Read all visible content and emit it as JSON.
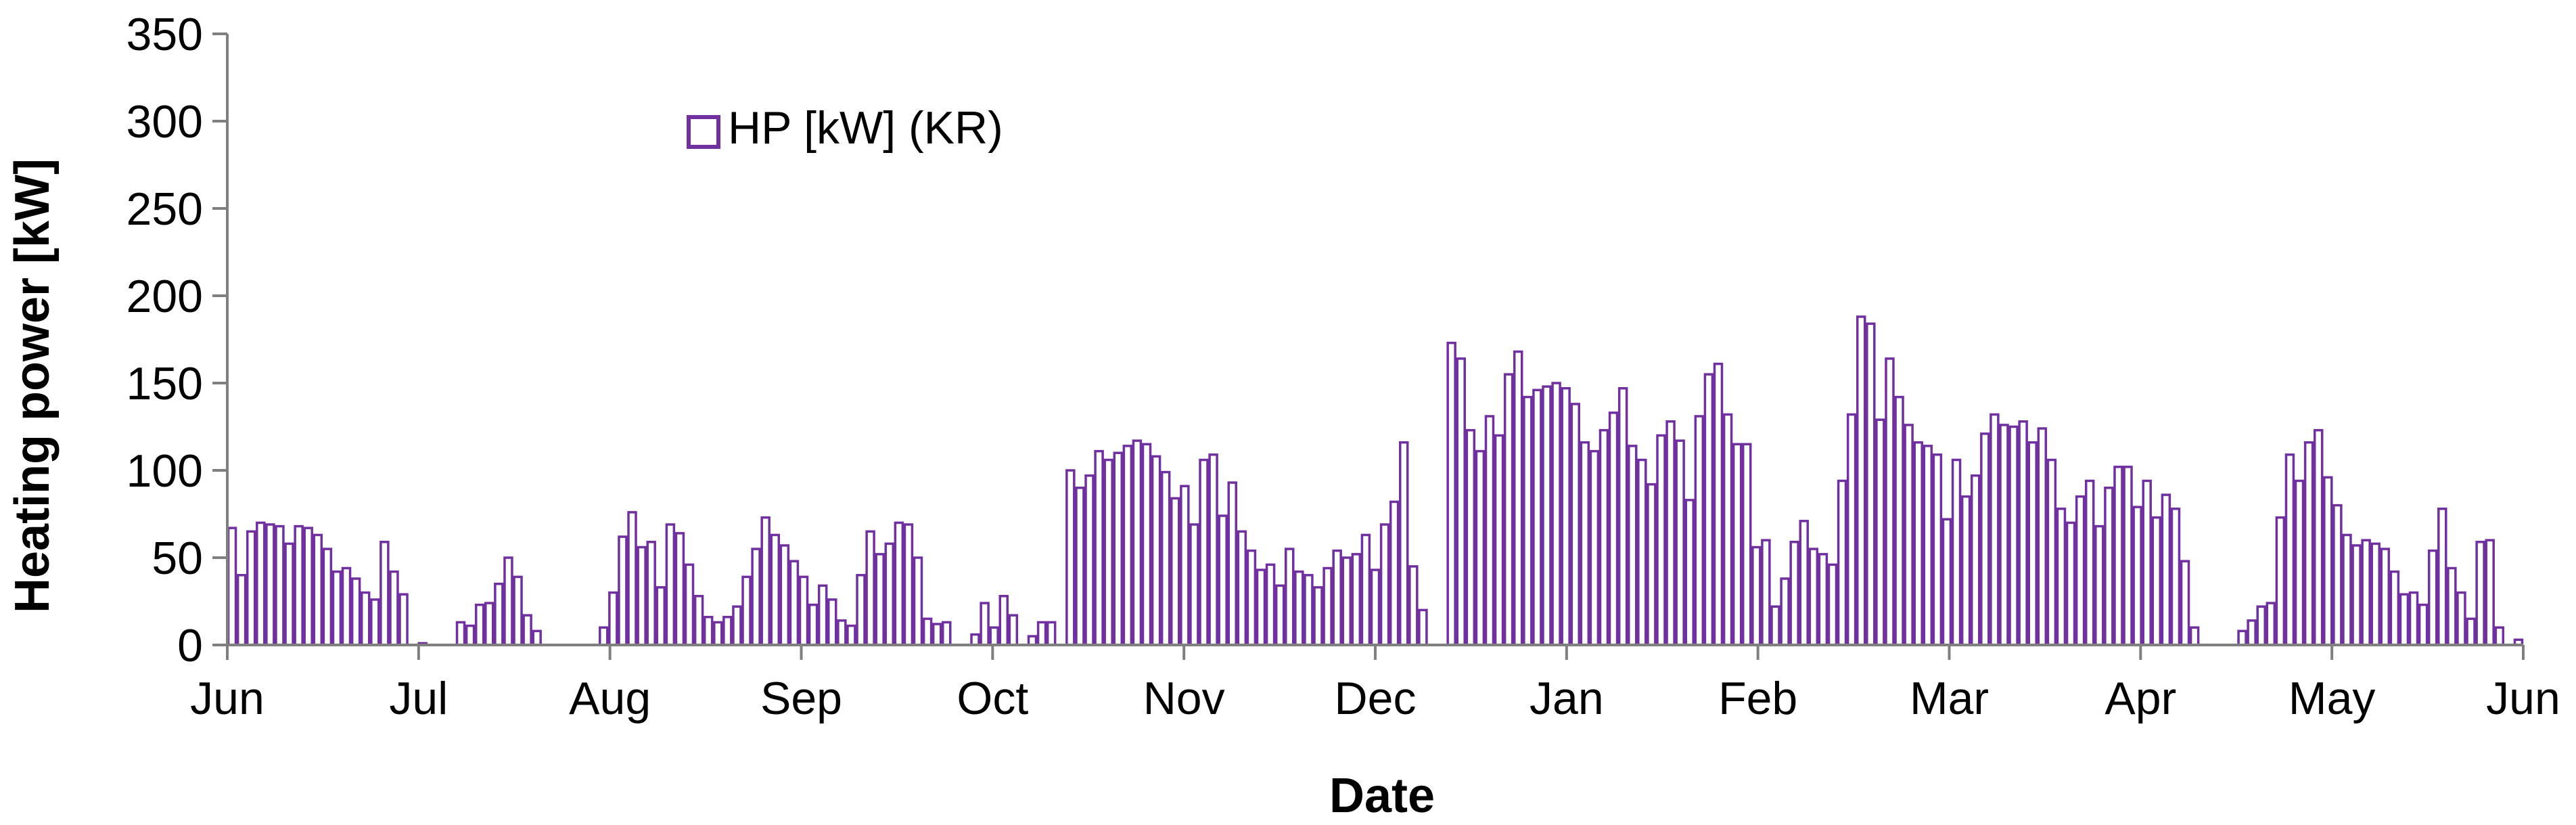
{
  "chart_data": {
    "type": "bar",
    "title": "",
    "xlabel": "Date",
    "ylabel": "Heating power [kW]",
    "ylim": [
      0,
      350
    ],
    "yticks": [
      0,
      50,
      100,
      150,
      200,
      250,
      300,
      350
    ],
    "x_tick_labels": [
      "Jun",
      "Jul",
      "Aug",
      "Sep",
      "Oct",
      "Nov",
      "Dec",
      "Jan",
      "Feb",
      "Mar",
      "Apr",
      "May",
      "Jun"
    ],
    "grid": false,
    "legend_position": "top-left",
    "series": [
      {
        "name": "HP [kW] (KR)",
        "color": "#7030A0",
        "fill": "#ffffff",
        "x_start": "Jun 1",
        "x_step": "2 days",
        "values": [
          67,
          40,
          65,
          70,
          69,
          68,
          58,
          68,
          67,
          63,
          55,
          42,
          44,
          38,
          30,
          26,
          59,
          42,
          29,
          0,
          1,
          0,
          0,
          0,
          13,
          11,
          23,
          24,
          35,
          50,
          39,
          17,
          8,
          0,
          0,
          0,
          0,
          0,
          0,
          10,
          30,
          62,
          76,
          56,
          59,
          33,
          69,
          64,
          46,
          28,
          16,
          13,
          16,
          22,
          39,
          55,
          73,
          63,
          57,
          48,
          39,
          23,
          34,
          26,
          14,
          11,
          40,
          65,
          52,
          58,
          70,
          69,
          50,
          15,
          12,
          13,
          0,
          0,
          6,
          24,
          10,
          28,
          17,
          0,
          5,
          13,
          13,
          0,
          100,
          90,
          97,
          111,
          106,
          110,
          114,
          117,
          115,
          108,
          99,
          84,
          91,
          69,
          106,
          109,
          74,
          93,
          65,
          54,
          43,
          46,
          34,
          55,
          42,
          40,
          33,
          44,
          54,
          50,
          52,
          63,
          43,
          69,
          82,
          116,
          45,
          20,
          0,
          0,
          173,
          164,
          123,
          111,
          131,
          120,
          155,
          168,
          142,
          146,
          148,
          150,
          147,
          138,
          116,
          111,
          123,
          133,
          147,
          114,
          106,
          92,
          120,
          128,
          117,
          83,
          131,
          155,
          161,
          132,
          115,
          115,
          56,
          60,
          22,
          38,
          59,
          71,
          55,
          52,
          46,
          94,
          132,
          188,
          184,
          129,
          164,
          142,
          126,
          116,
          114,
          109,
          72,
          106,
          85,
          97,
          121,
          132,
          126,
          125,
          128,
          116,
          124,
          106,
          78,
          70,
          85,
          94,
          68,
          90,
          102,
          102,
          79,
          94,
          73,
          86,
          78,
          48,
          10,
          0,
          0,
          0,
          0,
          8,
          14,
          22,
          24,
          73,
          109,
          94,
          116,
          123,
          96,
          80,
          63,
          57,
          60,
          58,
          55,
          42,
          29,
          30,
          23,
          54,
          78,
          44,
          30,
          15,
          59,
          60,
          10,
          0,
          3
        ]
      }
    ]
  }
}
